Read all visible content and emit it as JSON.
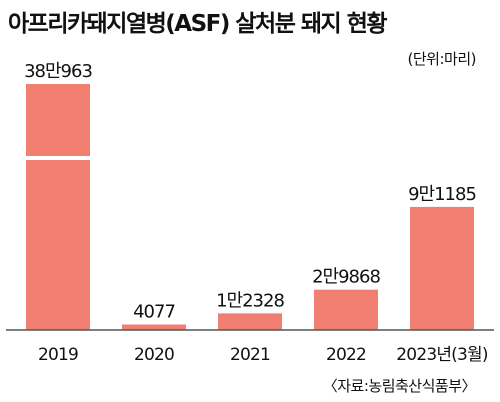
{
  "title": "아프리카돼지열병(ASF) 살처분 돼지 현황",
  "unit_note": "(단위:마리)",
  "source_note": "〈자료:농림축산식품부〉",
  "colors": {
    "bar": "#f07f72",
    "axis": "#555555"
  },
  "chart_data": {
    "type": "bar",
    "title": "아프리카돼지열병(ASF) 살처분 돼지 현황",
    "categories": [
      "2019",
      "2020",
      "2021",
      "2022",
      "2023년(3월)"
    ],
    "values": [
      380963,
      4077,
      12328,
      29868,
      91185
    ],
    "value_labels": [
      "38만963",
      "4077",
      "1만2328",
      "2만9868",
      "9만1185"
    ],
    "axis_break": true,
    "grid": false,
    "legend": "none"
  }
}
